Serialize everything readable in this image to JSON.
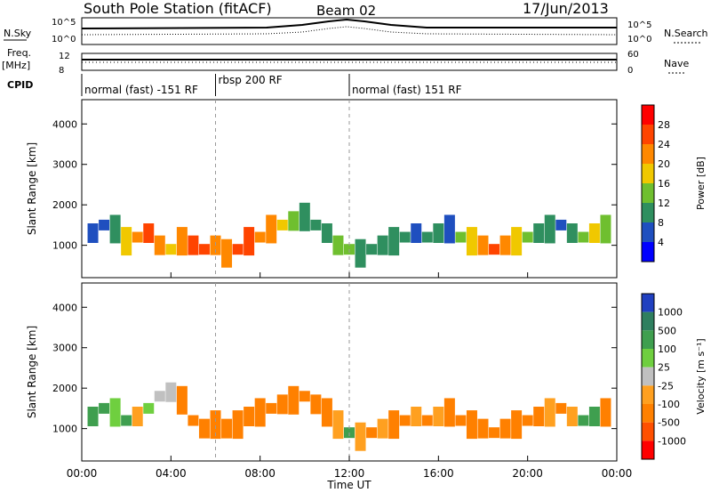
{
  "header": {
    "station": "South Pole Station (fitACF)",
    "beam": "Beam 02",
    "date": "17/Jun/2013"
  },
  "top_panels": {
    "nsky_label": "N.Sky",
    "nsearch_label": "N.Search",
    "freq_label_1": "Freq.",
    "freq_label_2": "[MHz]",
    "nave_label": "Nave",
    "cpid_label": "CPID",
    "noise_ticks": [
      "10^5",
      "10^0"
    ],
    "freq_ticks": [
      "12",
      "8"
    ],
    "nave_ticks": [
      "60",
      "0"
    ]
  },
  "modes": [
    {
      "label": "normal (fast) -151 RF",
      "start_hour": 0
    },
    {
      "label": "rbsp 200 RF",
      "start_hour": 6
    },
    {
      "label": "normal (fast) 151 RF",
      "start_hour": 12
    }
  ],
  "power_scale": {
    "label": "Power [dB]",
    "ticks": [
      "28",
      "24",
      "20",
      "16",
      "12",
      "8",
      "4"
    ],
    "colors": [
      "#ff0000",
      "#ff4400",
      "#ff8800",
      "#f0c800",
      "#6fbf2f",
      "#2f8f5f",
      "#1f4fbf",
      "#0000ff"
    ]
  },
  "velocity_scale": {
    "label": "Velocity [m s⁻¹]",
    "ticks": [
      "1000",
      "500",
      "100",
      "25",
      "-25",
      "-100",
      "-500",
      "-1000"
    ],
    "colors": [
      "#2040c0",
      "#2f7f5f",
      "#3f9f4f",
      "#6fcf3f",
      "#c0c0c0",
      "#ffa020",
      "#ff8000",
      "#ff5000",
      "#ff0000"
    ]
  },
  "chart_data": [
    {
      "type": "heatmap",
      "name": "power",
      "ylabel": "Slant Range [km]",
      "xlabel": "Time UT",
      "x_ticks": [
        "00:00",
        "04:00",
        "08:00",
        "12:00",
        "16:00",
        "20:00",
        "00:00"
      ],
      "y_ticks": [
        "1000",
        "2000",
        "3000",
        "4000"
      ],
      "xlim": [
        0,
        24
      ],
      "ylim": [
        200,
        4600
      ],
      "cells": [
        [
          0.5,
          1300,
          6
        ],
        [
          1,
          1500,
          8
        ],
        [
          1.5,
          1400,
          12
        ],
        [
          2,
          1100,
          20
        ],
        [
          2.5,
          1200,
          24
        ],
        [
          3,
          1300,
          26
        ],
        [
          3.5,
          1000,
          22
        ],
        [
          4,
          900,
          18
        ],
        [
          4.5,
          1100,
          24
        ],
        [
          5,
          1000,
          28
        ],
        [
          5.5,
          900,
          26
        ],
        [
          6,
          1000,
          24
        ],
        [
          6.5,
          800,
          22
        ],
        [
          7,
          900,
          28
        ],
        [
          7.5,
          1100,
          26
        ],
        [
          8,
          1200,
          24
        ],
        [
          8.5,
          1400,
          22
        ],
        [
          9,
          1500,
          18
        ],
        [
          9.5,
          1600,
          14
        ],
        [
          10,
          1700,
          12
        ],
        [
          10.5,
          1500,
          10
        ],
        [
          11,
          1300,
          12
        ],
        [
          11.5,
          1000,
          14
        ],
        [
          12,
          900,
          16
        ],
        [
          12.5,
          800,
          12
        ],
        [
          13,
          900,
          10
        ],
        [
          13.5,
          1000,
          12
        ],
        [
          14,
          1100,
          10
        ],
        [
          14.5,
          1200,
          12
        ],
        [
          15,
          1300,
          8
        ],
        [
          15.5,
          1200,
          10
        ],
        [
          16,
          1300,
          12
        ],
        [
          16.5,
          1400,
          8
        ],
        [
          17,
          1200,
          14
        ],
        [
          17.5,
          1100,
          18
        ],
        [
          18,
          1000,
          24
        ],
        [
          18.5,
          900,
          26
        ],
        [
          19,
          1000,
          24
        ],
        [
          19.5,
          1100,
          20
        ],
        [
          20,
          1200,
          16
        ],
        [
          20.5,
          1300,
          12
        ],
        [
          21,
          1400,
          10
        ],
        [
          21.5,
          1500,
          8
        ],
        [
          22,
          1300,
          12
        ],
        [
          22.5,
          1200,
          16
        ],
        [
          23,
          1300,
          18
        ],
        [
          23.5,
          1400,
          14
        ]
      ]
    },
    {
      "type": "heatmap",
      "name": "velocity",
      "ylabel": "Slant Range [km]",
      "xlabel": "Time UT",
      "x_ticks": [
        "00:00",
        "04:00",
        "08:00",
        "12:00",
        "16:00",
        "20:00",
        "00:00"
      ],
      "y_ticks": [
        "1000",
        "2000",
        "3000",
        "4000"
      ],
      "xlim": [
        0,
        24
      ],
      "ylim": [
        200,
        4600
      ],
      "cells": [
        [
          0.5,
          1300,
          100
        ],
        [
          1,
          1500,
          100
        ],
        [
          1.5,
          1400,
          50
        ],
        [
          2,
          1200,
          100
        ],
        [
          2.5,
          1300,
          -100
        ],
        [
          3,
          1500,
          25
        ],
        [
          3.5,
          1800,
          0
        ],
        [
          4,
          1900,
          0
        ],
        [
          4.5,
          1700,
          -200
        ],
        [
          5,
          1200,
          -200
        ],
        [
          5.5,
          1000,
          -200
        ],
        [
          6,
          1100,
          -200
        ],
        [
          6.5,
          1000,
          -300
        ],
        [
          7,
          1100,
          -300
        ],
        [
          7.5,
          1300,
          -300
        ],
        [
          8,
          1400,
          -300
        ],
        [
          8.5,
          1500,
          -200
        ],
        [
          9,
          1600,
          -200
        ],
        [
          9.5,
          1700,
          -200
        ],
        [
          10,
          1800,
          -300
        ],
        [
          10.5,
          1600,
          -200
        ],
        [
          11,
          1400,
          -200
        ],
        [
          11.5,
          1100,
          -100
        ],
        [
          12,
          900,
          100
        ],
        [
          12.5,
          800,
          -100
        ],
        [
          13,
          900,
          -200
        ],
        [
          13.5,
          1000,
          -100
        ],
        [
          14,
          1100,
          -200
        ],
        [
          14.5,
          1200,
          -200
        ],
        [
          15,
          1300,
          -100
        ],
        [
          15.5,
          1200,
          -200
        ],
        [
          16,
          1300,
          -100
        ],
        [
          16.5,
          1400,
          -200
        ],
        [
          17,
          1200,
          -200
        ],
        [
          17.5,
          1100,
          -300
        ],
        [
          18,
          1000,
          -200
        ],
        [
          18.5,
          900,
          -200
        ],
        [
          19,
          1000,
          -200
        ],
        [
          19.5,
          1100,
          -200
        ],
        [
          20,
          1200,
          -200
        ],
        [
          20.5,
          1300,
          -200
        ],
        [
          21,
          1400,
          -100
        ],
        [
          21.5,
          1500,
          -200
        ],
        [
          22,
          1300,
          -100
        ],
        [
          22.5,
          1200,
          100
        ],
        [
          23,
          1300,
          200
        ],
        [
          23.5,
          1400,
          -200
        ]
      ]
    }
  ]
}
